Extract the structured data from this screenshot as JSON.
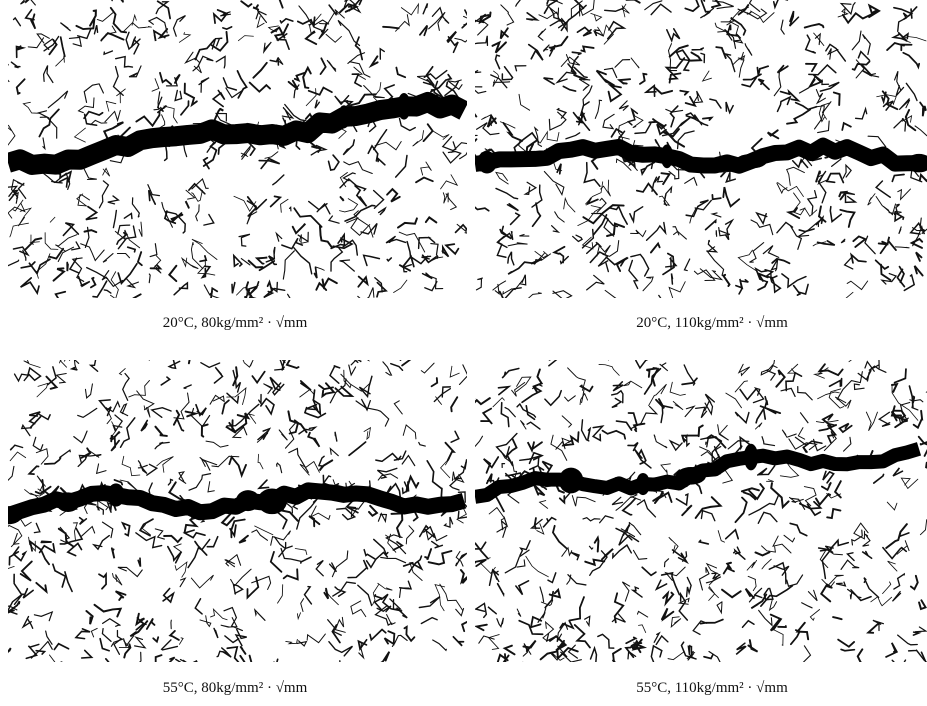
{
  "panels": [
    {
      "caption": "20°C, 80kg/mm² · √mm"
    },
    {
      "caption": "20°C, 110kg/mm² · √mm"
    },
    {
      "caption": "55°C, 80kg/mm² · √mm"
    },
    {
      "caption": "55°C, 110kg/mm² · √mm"
    }
  ]
}
